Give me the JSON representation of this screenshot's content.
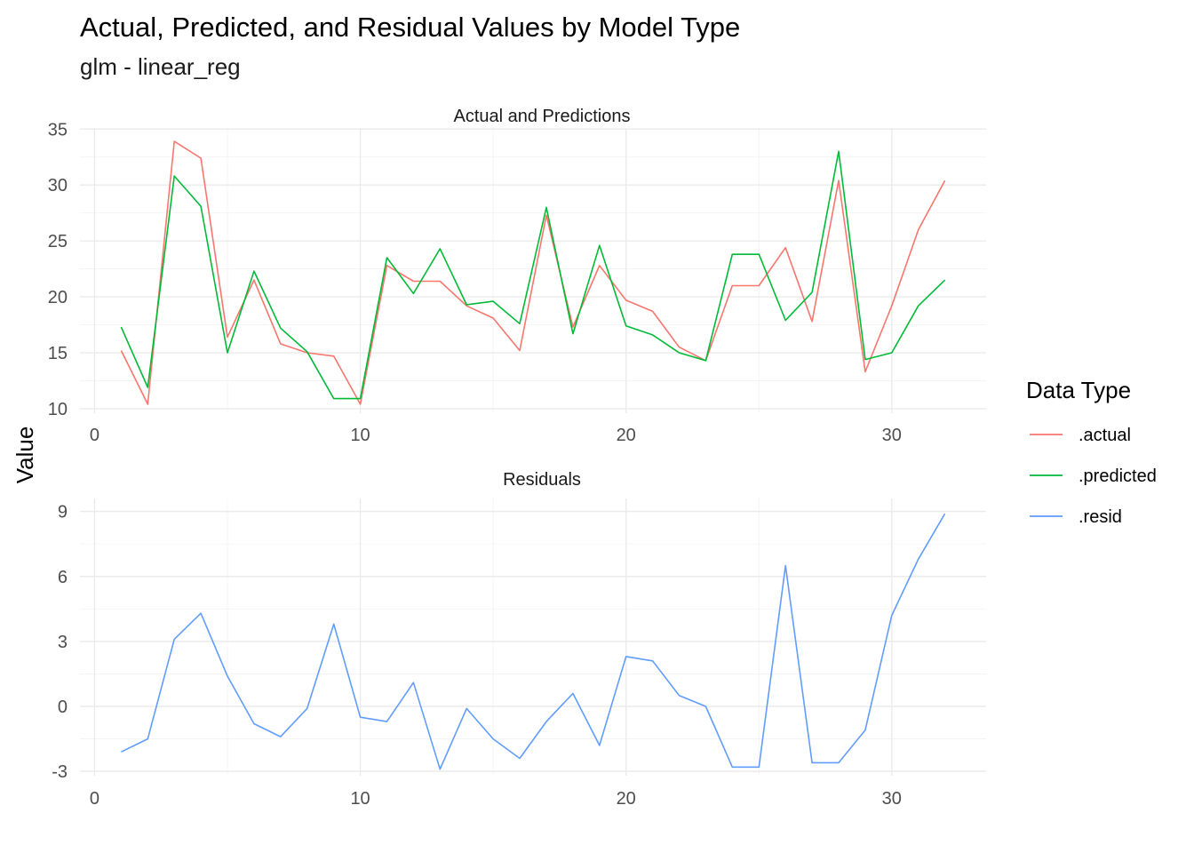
{
  "chart_data": {
    "type": "line",
    "title": "Actual, Predicted, and Residual Values by Model Type",
    "subtitle": "glm - linear_reg",
    "ylabel": "Value",
    "xlabel": "",
    "legend": {
      "title": "Data Type",
      "placement": "right",
      "entries": [
        {
          "name": ".actual",
          "color": "#F8766D"
        },
        {
          "name": ".predicted",
          "color": "#00BA38"
        },
        {
          "name": ".resid",
          "color": "#619CFF"
        }
      ]
    },
    "grid": true,
    "panels": [
      {
        "strip": "Actual and Predictions",
        "xlim": [
          -0.55,
          33.55
        ],
        "ylim": [
          9.6,
          35.1
        ],
        "x_ticks": [
          0,
          10,
          20,
          30
        ],
        "y_ticks": [
          10,
          15,
          20,
          25,
          30,
          35
        ],
        "series": [
          {
            "name": ".actual",
            "color": "#F8766D",
            "x": [
              1,
              2,
              3,
              4,
              5,
              6,
              7,
              8,
              9,
              10,
              11,
              12,
              13,
              14,
              15,
              16,
              17,
              18,
              19,
              20,
              21,
              22,
              23,
              24,
              25,
              26,
              27,
              28,
              29,
              30,
              31,
              32
            ],
            "y": [
              15.2,
              10.4,
              33.9,
              32.4,
              16.4,
              21.5,
              15.8,
              15.0,
              14.7,
              10.4,
              22.8,
              21.4,
              21.4,
              19.2,
              18.1,
              15.2,
              27.3,
              17.3,
              22.8,
              19.7,
              18.7,
              15.5,
              14.3,
              21.0,
              21.0,
              24.4,
              17.8,
              30.4,
              13.3,
              19.2,
              26.0,
              30.4
            ]
          },
          {
            "name": ".predicted",
            "color": "#00BA38",
            "x": [
              1,
              2,
              3,
              4,
              5,
              6,
              7,
              8,
              9,
              10,
              11,
              12,
              13,
              14,
              15,
              16,
              17,
              18,
              19,
              20,
              21,
              22,
              23,
              24,
              25,
              26,
              27,
              28,
              29,
              30,
              31,
              32
            ],
            "y": [
              17.3,
              11.9,
              30.8,
              28.1,
              15.0,
              22.3,
              17.2,
              15.1,
              10.9,
              10.9,
              23.5,
              20.3,
              24.3,
              19.3,
              19.6,
              17.6,
              28.0,
              16.7,
              24.6,
              17.4,
              16.6,
              15.0,
              14.3,
              23.8,
              23.8,
              17.9,
              20.4,
              33.0,
              14.4,
              15.0,
              19.2,
              21.5
            ]
          }
        ]
      },
      {
        "strip": "Residuals",
        "xlim": [
          -0.55,
          33.55
        ],
        "ylim": [
          -3.2,
          9.6
        ],
        "x_ticks": [
          0,
          10,
          20,
          30
        ],
        "y_ticks": [
          -3,
          0,
          3,
          6,
          9
        ],
        "series": [
          {
            "name": ".resid",
            "color": "#619CFF",
            "x": [
              1,
              2,
              3,
              4,
              5,
              6,
              7,
              8,
              9,
              10,
              11,
              12,
              13,
              14,
              15,
              16,
              17,
              18,
              19,
              20,
              21,
              22,
              23,
              24,
              25,
              26,
              27,
              28,
              29,
              30,
              31,
              32
            ],
            "y": [
              -2.1,
              -1.5,
              3.1,
              4.3,
              1.4,
              -0.8,
              -1.4,
              -0.1,
              3.8,
              -0.5,
              -0.7,
              1.1,
              -2.9,
              -0.1,
              -1.5,
              -2.4,
              -0.7,
              0.6,
              -1.8,
              2.3,
              2.1,
              0.5,
              0.0,
              -2.8,
              -2.8,
              6.5,
              -2.6,
              -2.6,
              -1.1,
              4.2,
              6.8,
              8.9
            ]
          }
        ]
      }
    ]
  }
}
